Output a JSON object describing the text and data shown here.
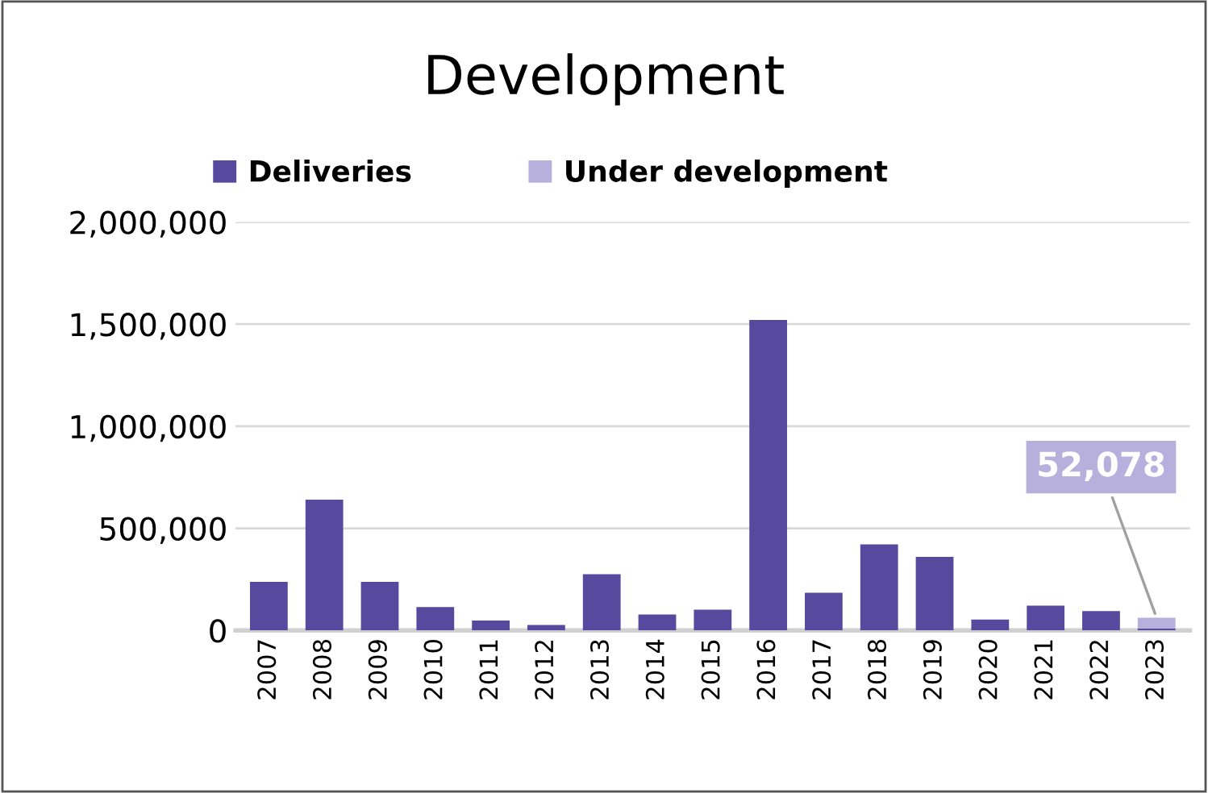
{
  "chart_data": {
    "type": "bar",
    "title": "Development",
    "stacked": true,
    "categories": [
      "2007",
      "2008",
      "2009",
      "2010",
      "2011",
      "2012",
      "2013",
      "2014",
      "2015",
      "2016",
      "2017",
      "2018",
      "2019",
      "2020",
      "2021",
      "2022",
      "2023"
    ],
    "series": [
      {
        "name": "Deliveries",
        "color": "#574a9e",
        "values": [
          238000,
          640000,
          238000,
          115000,
          48000,
          27000,
          275000,
          78000,
          102000,
          1521000,
          185000,
          421000,
          360000,
          53000,
          121000,
          95000,
          10000
        ]
      },
      {
        "name": "Under development",
        "color": "#b7b0dc",
        "values": [
          null,
          null,
          null,
          null,
          null,
          null,
          null,
          null,
          null,
          null,
          null,
          null,
          null,
          null,
          null,
          null,
          52078
        ],
        "value_labels": [
          null,
          null,
          null,
          null,
          null,
          null,
          null,
          null,
          null,
          null,
          null,
          null,
          null,
          null,
          null,
          null,
          "52,078"
        ]
      }
    ],
    "ylim": [
      0,
      2000000
    ],
    "yticks": [
      {
        "value": 0,
        "label": "0"
      },
      {
        "value": 500000,
        "label": "500,000"
      },
      {
        "value": 1000000,
        "label": "1,000,000"
      },
      {
        "value": 1500000,
        "label": "1,500,000"
      },
      {
        "value": 2000000,
        "label": "2,000,000"
      }
    ],
    "grid": "y",
    "legend": "top"
  }
}
